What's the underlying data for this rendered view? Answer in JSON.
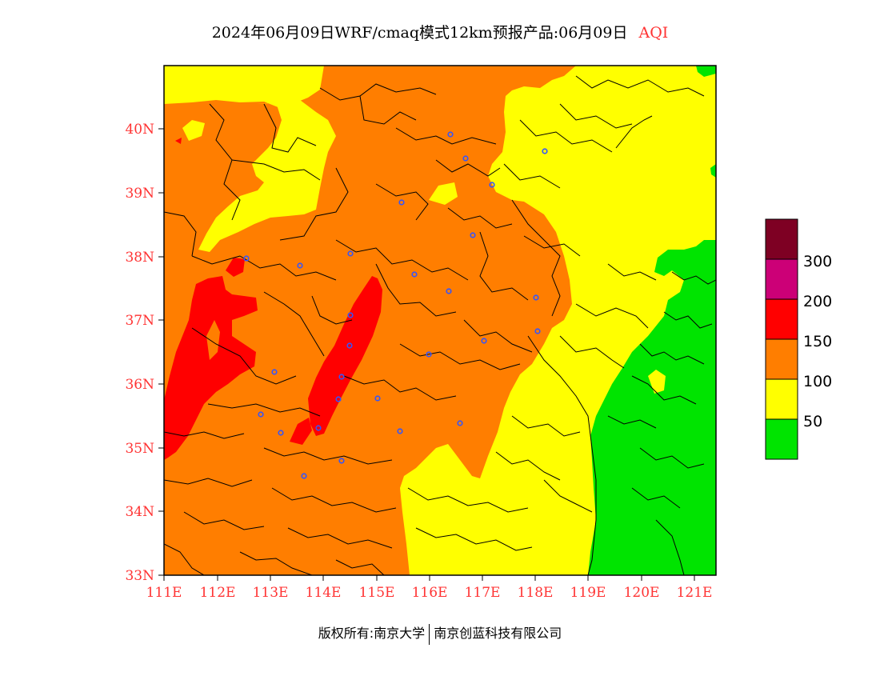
{
  "title": {
    "main": "2024年06月09日WRF/cmaq模式12km预报产品:06月09日",
    "product": "AQI"
  },
  "colors": {
    "green": "#00e400",
    "yellow": "#ffff00",
    "orange": "#ff7e00",
    "red": "#ff0000",
    "purple": "#cc0077",
    "maroon": "#7e0023",
    "label": "#ff3333",
    "station": "#3355ff"
  },
  "axes": {
    "lat_labels": [
      "33N",
      "34N",
      "35N",
      "36N",
      "37N",
      "38N",
      "39N",
      "40N"
    ],
    "lon_labels": [
      "111E",
      "112E",
      "113E",
      "114E",
      "115E",
      "116E",
      "117E",
      "118E",
      "119E",
      "120E",
      "121E"
    ]
  },
  "legend": {
    "labels": [
      "50",
      "100",
      "150",
      "200",
      "300"
    ]
  },
  "copyright": {
    "left": "版权所有:南京大学",
    "right": "南京创蓝科技有限公司"
  }
}
